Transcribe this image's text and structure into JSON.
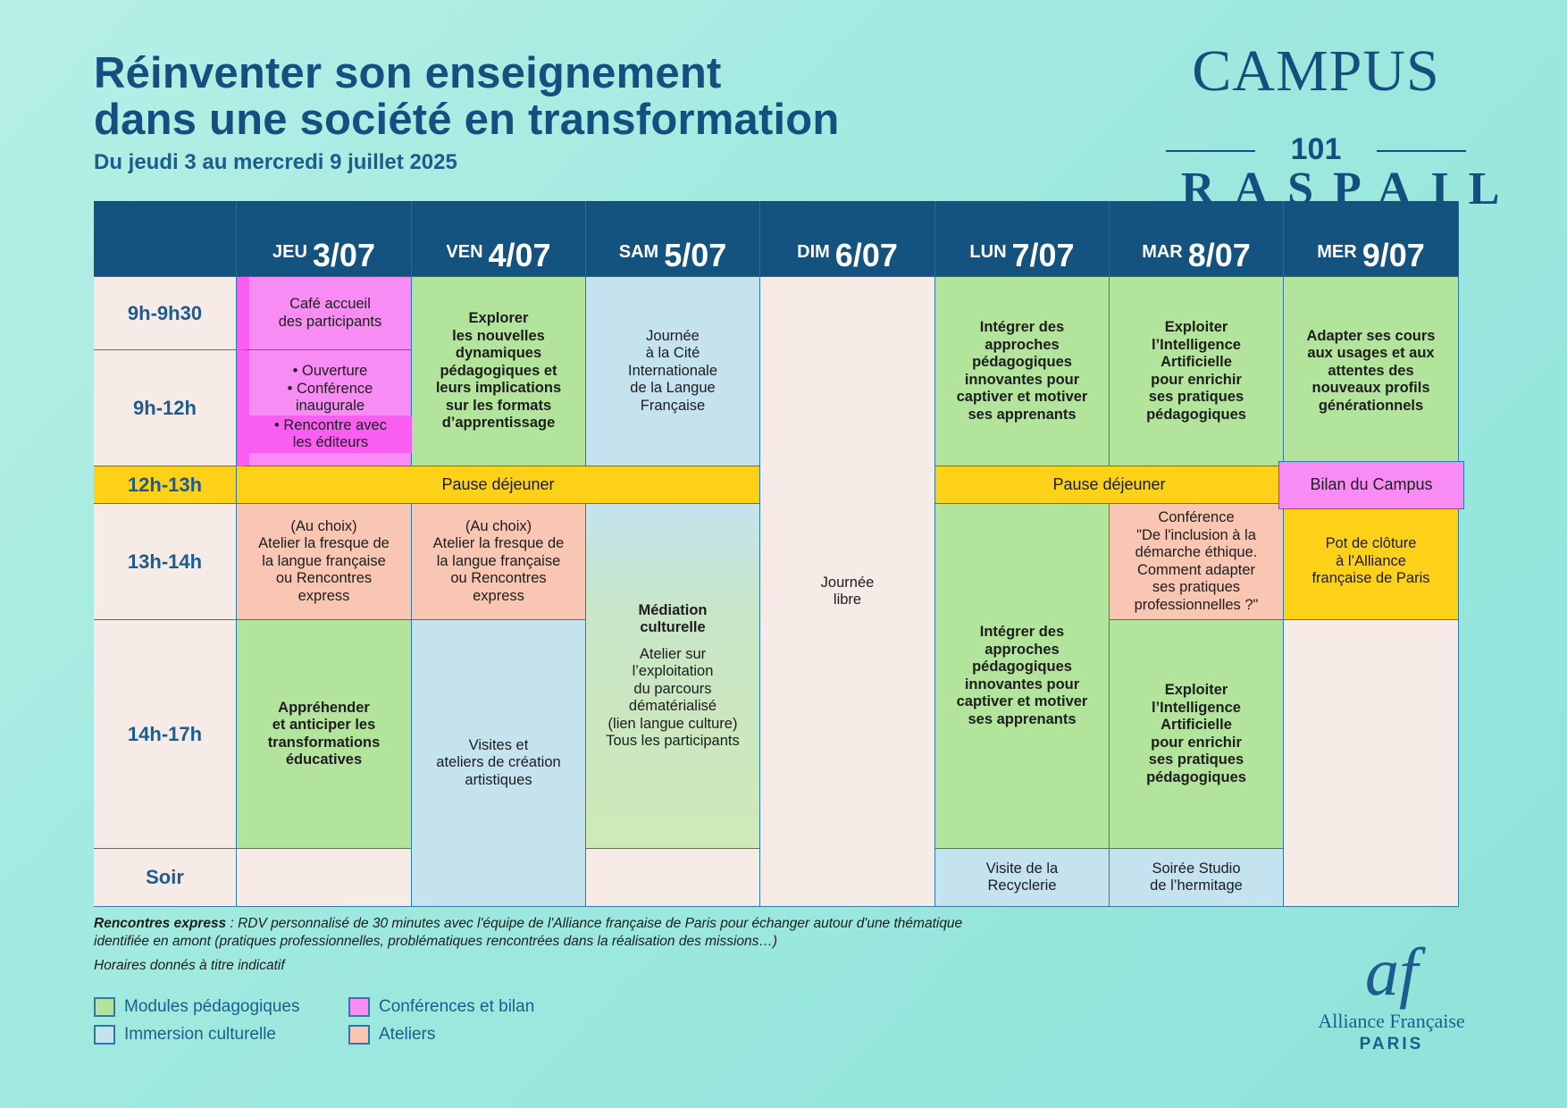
{
  "title_line1": "Réinventer son enseignement",
  "title_line2": "dans une société en transformation",
  "subtitle": "Du jeudi 3 au mercredi 9 juillet 2025",
  "logo": {
    "campus": "CAMPUS",
    "number": "101",
    "raspail": "RASPAIL"
  },
  "days": [
    {
      "dow": "JEU",
      "date": "3/07"
    },
    {
      "dow": "VEN",
      "date": "4/07"
    },
    {
      "dow": "SAM",
      "date": "5/07"
    },
    {
      "dow": "DIM",
      "date": "6/07"
    },
    {
      "dow": "LUN",
      "date": "7/07"
    },
    {
      "dow": "MAR",
      "date": "8/07"
    },
    {
      "dow": "MER",
      "date": "9/07"
    }
  ],
  "times": [
    "9h-9h30",
    "9h-12h",
    "12h-13h",
    "13h-14h",
    "14h-17h",
    "Soir"
  ],
  "cells": {
    "jeu_cafe": [
      "Café accueil",
      "des participants"
    ],
    "jeu_ouverture": [
      "• Ouverture",
      "• Conférence",
      "inaugurale"
    ],
    "jeu_rencontre": [
      "• Rencontre avec",
      "les éditeurs"
    ],
    "ven_morning": [
      "Explorer",
      "les nouvelles",
      "dynamiques",
      "pédagogiques et",
      "leurs implications",
      "sur les formats",
      "d’apprentissage"
    ],
    "sam_morning": [
      "Journée",
      "à la Cité",
      "Internationale",
      "de la Langue",
      "Française"
    ],
    "pause1": "Pause déjeuner",
    "pause2": "Pause déjeuner",
    "lun_morning": [
      "Intégrer des",
      "approches",
      "pédagogiques",
      "innovantes pour",
      "captiver et motiver",
      "ses apprenants"
    ],
    "mar_morning": [
      "Exploiter",
      "l’Intelligence",
      "Artificielle",
      "pour enrichir",
      "ses pratiques",
      "pédagogiques"
    ],
    "mer_morning": [
      "Adapter ses cours",
      "aux usages et aux",
      "attentes des",
      "nouveaux profils",
      "générationnels"
    ],
    "bilan": "Bilan du Campus",
    "jeu_atelier": [
      "(Au choix)",
      "Atelier la fresque de",
      "la langue française",
      "ou Rencontres",
      "express"
    ],
    "ven_atelier": [
      "(Au choix)",
      "Atelier la fresque de",
      "la langue française",
      "ou Rencontres",
      "express"
    ],
    "sam_mediation_title": [
      "Médiation",
      "culturelle"
    ],
    "sam_mediation_body": [
      "Atelier sur",
      "l’exploitation",
      "du parcours",
      "dématérialisé",
      "(lien langue culture)",
      "Tous les participants"
    ],
    "dim_libre": [
      "Journée",
      "libre"
    ],
    "lun_afternoon": [
      "Intégrer des",
      "approches",
      "pédagogiques",
      "innovantes pour",
      "captiver et motiver",
      "ses apprenants"
    ],
    "mar_conference": [
      "Conférence",
      "\"De l'inclusion à la",
      "démarche éthique.",
      "Comment adapter",
      "ses pratiques",
      "professionnelles ?\""
    ],
    "mer_pot": [
      "Pot de clôture",
      "à l’Alliance",
      "française de Paris"
    ],
    "jeu_afternoon": [
      "Appréhender",
      "et anticiper les",
      "transformations",
      "éducatives"
    ],
    "ven_afternoon": [
      "Visites et",
      "ateliers de création",
      "artistiques"
    ],
    "mar_afternoon": [
      "Exploiter",
      "l’Intelligence",
      "Artificielle",
      "pour enrichir",
      "ses pratiques",
      "pédagogiques"
    ],
    "lun_soir": [
      "Visite de la",
      "Recyclerie"
    ],
    "mar_soir": [
      "Soirée Studio",
      "de l’hermitage"
    ]
  },
  "notes": {
    "term": "Rencontres express",
    "text_line1": " : RDV personnalisé de 30 minutes avec l'équipe de l'Alliance française de Paris pour échanger autour d'une thématique",
    "text_line2": "identifiée en amont (pratiques professionnelles, problématiques rencontrées dans la réalisation des missions…)",
    "disclaimer": "Horaires donnés à titre indicatif"
  },
  "legend": [
    {
      "label": "Modules pédagogiques",
      "color": "#b3e49b"
    },
    {
      "label": "Conférences et bilan",
      "color": "#f98cf4"
    },
    {
      "label": "Immersion culturelle",
      "color": "#c4e3ef"
    },
    {
      "label": "Ateliers",
      "color": "#f8c6b2"
    }
  ],
  "af_logo": {
    "mark": "af",
    "name": "Alliance Française",
    "city": "PARIS"
  },
  "colors": {
    "navy": "#14537f",
    "green": "#b3e49b",
    "blue": "#c4e3ef",
    "pink": "#f98cf4",
    "peach": "#f8c6b2",
    "yellow": "#fed119",
    "cream": "#f6ebe6"
  }
}
